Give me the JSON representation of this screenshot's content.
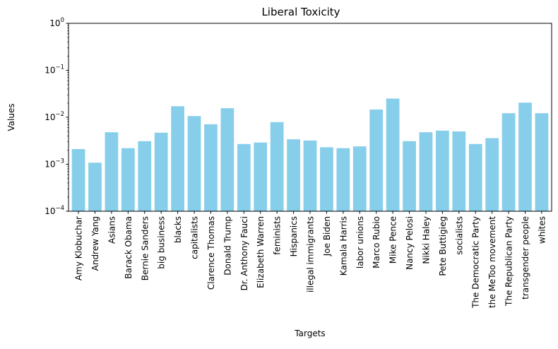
{
  "chart_data": {
    "type": "bar",
    "title": "Liberal Toxicity",
    "xlabel": "Targets",
    "ylabel": "Values",
    "yscale": "log",
    "ylim": [
      0.0001,
      1
    ],
    "yticks": [
      {
        "value": 0.0001,
        "base": "10",
        "exp": "−4"
      },
      {
        "value": 0.001,
        "base": "10",
        "exp": "−3"
      },
      {
        "value": 0.01,
        "base": "10",
        "exp": "−2"
      },
      {
        "value": 0.1,
        "base": "10",
        "exp": "−1"
      },
      {
        "value": 1,
        "base": "10",
        "exp": "0"
      }
    ],
    "grid": false,
    "bar_color": "#87ceeb",
    "categories": [
      "Amy Klobuchar",
      "Andrew Yang",
      "Asians",
      "Barack Obama",
      "Bernie Sanders",
      "big business",
      "blacks",
      "capitalists",
      "Clarence Thomas",
      "Donald Trump",
      "Dr. Anthony Fauci",
      "Elizabeth Warren",
      "feminists",
      "Hispanics",
      "illegal immigrants",
      "Joe Biden",
      "Kamala Harris",
      "labor unions",
      "Marco Rubio",
      "Mike Pence",
      "Nancy Pelosi",
      "Nikki Haley",
      "Pete Buttigieg",
      "socialists",
      "The Democratic Party",
      "the MeToo movement",
      "The Republican Party",
      "transgender people",
      "whites"
    ],
    "values": [
      0.0021,
      0.00108,
      0.0048,
      0.0022,
      0.0031,
      0.0047,
      0.0172,
      0.0106,
      0.0071,
      0.0156,
      0.0027,
      0.0029,
      0.0079,
      0.0034,
      0.0032,
      0.0023,
      0.0022,
      0.0024,
      0.0146,
      0.025,
      0.0031,
      0.0048,
      0.0052,
      0.005,
      0.0027,
      0.0036,
      0.0122,
      0.0205,
      0.0122
    ]
  }
}
